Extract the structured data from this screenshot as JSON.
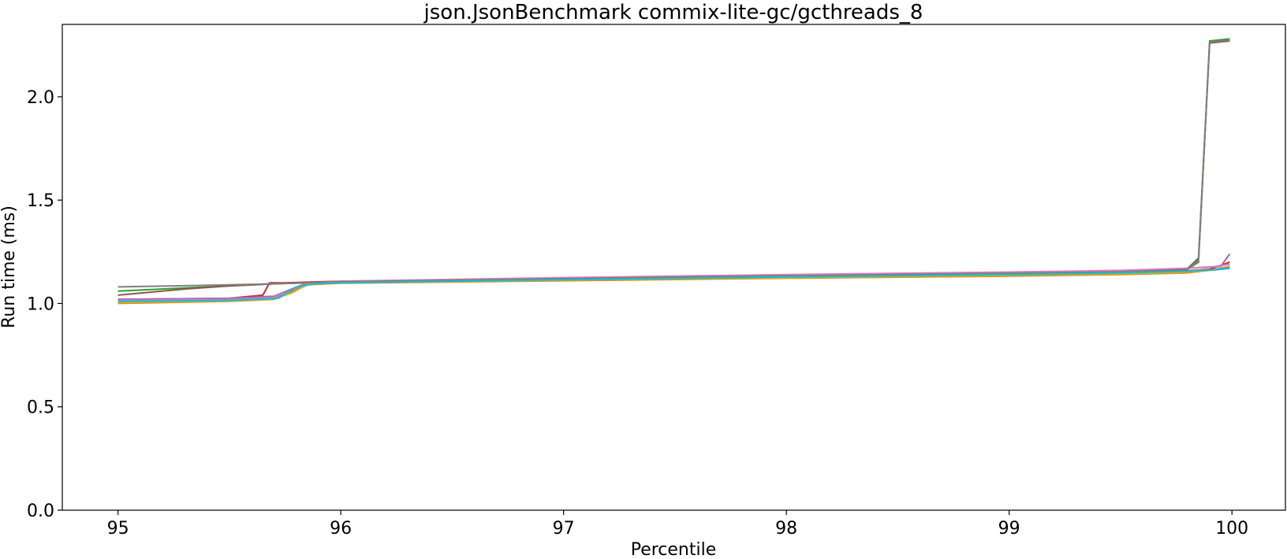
{
  "chart_data": {
    "type": "line",
    "title": "json.JsonBenchmark commix-lite-gc/gcthreads_8",
    "xlabel": "Percentile",
    "ylabel": "Run time (ms)",
    "xlim": [
      94.75,
      100.24
    ],
    "ylim": [
      0.0,
      2.35
    ],
    "xticks": [
      95,
      96,
      97,
      98,
      99,
      100
    ],
    "yticks": [
      0.0,
      0.5,
      1.0,
      1.5,
      2.0
    ],
    "xtick_labels": [
      "95",
      "96",
      "97",
      "98",
      "99",
      "100"
    ],
    "ytick_labels": [
      "0.0",
      "0.5",
      "1.0",
      "1.5",
      "2.0"
    ],
    "grid": false,
    "legend": "none",
    "series": [
      {
        "color": "#1f77b4",
        "x": [
          95.0,
          95.5,
          95.7,
          95.78,
          95.85,
          96.0,
          97.0,
          98.0,
          99.0,
          99.5,
          99.8,
          99.9,
          99.99
        ],
        "y": [
          1.01,
          1.015,
          1.025,
          1.06,
          1.095,
          1.1,
          1.115,
          1.128,
          1.14,
          1.148,
          1.155,
          1.16,
          1.17
        ]
      },
      {
        "color": "#ff7f0e",
        "x": [
          95.0,
          95.5,
          95.7,
          95.78,
          95.85,
          96.0,
          97.0,
          98.0,
          99.0,
          99.5,
          99.8,
          99.9,
          99.99
        ],
        "y": [
          1.0,
          1.01,
          1.02,
          1.055,
          1.09,
          1.098,
          1.11,
          1.122,
          1.132,
          1.14,
          1.148,
          1.16,
          1.18
        ]
      },
      {
        "color": "#2ca02c",
        "x": [
          95.0,
          95.5,
          95.7,
          95.78,
          95.85,
          96.0,
          97.0,
          98.0,
          99.0,
          99.5,
          99.8,
          99.85,
          99.9,
          99.99
        ],
        "y": [
          1.06,
          1.085,
          1.095,
          1.1,
          1.1,
          1.105,
          1.12,
          1.132,
          1.145,
          1.152,
          1.165,
          1.2,
          2.27,
          2.28
        ]
      },
      {
        "color": "#d62728",
        "x": [
          95.0,
          95.5,
          95.65,
          95.68,
          95.75,
          96.0,
          97.0,
          98.0,
          99.0,
          99.5,
          99.8,
          99.9,
          99.99
        ],
        "y": [
          1.02,
          1.025,
          1.04,
          1.1,
          1.1,
          1.108,
          1.12,
          1.132,
          1.145,
          1.15,
          1.158,
          1.165,
          1.2
        ]
      },
      {
        "color": "#9467bd",
        "x": [
          95.0,
          95.5,
          95.7,
          95.78,
          95.85,
          96.0,
          97.0,
          98.0,
          99.0,
          99.5,
          99.8,
          99.95,
          99.99
        ],
        "y": [
          1.02,
          1.025,
          1.035,
          1.07,
          1.1,
          1.105,
          1.122,
          1.136,
          1.15,
          1.158,
          1.17,
          1.18,
          1.24
        ]
      },
      {
        "color": "#8c564b",
        "x": [
          95.0,
          95.3,
          95.5,
          95.7,
          96.0,
          97.0,
          98.0,
          99.0,
          99.5,
          99.8,
          99.85,
          99.9,
          99.99
        ],
        "y": [
          1.04,
          1.07,
          1.085,
          1.095,
          1.105,
          1.12,
          1.135,
          1.148,
          1.155,
          1.168,
          1.22,
          2.26,
          2.27
        ]
      },
      {
        "color": "#e377c2",
        "x": [
          95.0,
          95.5,
          95.7,
          95.78,
          95.85,
          96.0,
          97.0,
          98.0,
          99.0,
          99.5,
          99.8,
          99.9,
          99.99
        ],
        "y": [
          1.015,
          1.02,
          1.03,
          1.065,
          1.098,
          1.108,
          1.125,
          1.14,
          1.152,
          1.16,
          1.17,
          1.175,
          1.19
        ]
      },
      {
        "color": "#7f7f7f",
        "x": [
          95.0,
          95.5,
          95.7,
          96.0,
          97.0,
          98.0,
          99.0,
          99.5,
          99.8,
          99.85,
          99.9,
          99.99
        ],
        "y": [
          1.08,
          1.09,
          1.095,
          1.105,
          1.12,
          1.134,
          1.146,
          1.153,
          1.165,
          1.21,
          2.265,
          2.275
        ]
      },
      {
        "color": "#bcbd22",
        "x": [
          95.0,
          95.5,
          95.7,
          95.78,
          95.85,
          96.0,
          97.0,
          98.0,
          99.0,
          99.5,
          99.8,
          99.9,
          99.99
        ],
        "y": [
          1.005,
          1.012,
          1.022,
          1.05,
          1.092,
          1.1,
          1.113,
          1.125,
          1.136,
          1.144,
          1.152,
          1.16,
          1.175
        ]
      },
      {
        "color": "#17becf",
        "x": [
          95.0,
          95.5,
          95.72,
          95.8,
          95.88,
          96.0,
          97.0,
          98.0,
          99.0,
          99.5,
          99.8,
          99.9,
          99.99
        ],
        "y": [
          1.01,
          1.015,
          1.025,
          1.08,
          1.095,
          1.1,
          1.115,
          1.128,
          1.14,
          1.148,
          1.156,
          1.162,
          1.172
        ]
      }
    ]
  }
}
